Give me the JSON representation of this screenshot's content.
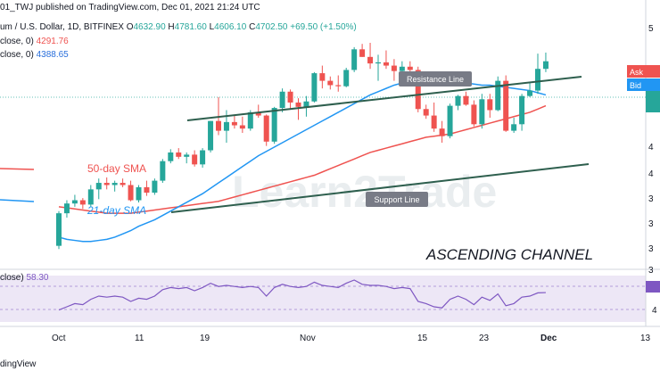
{
  "header": {
    "published": "01_TWJ published on TradingView.com, Dec 01, 2021 21:24 UTC",
    "symbol": "um / U.S. Dollar, 1D, BITFINEX",
    "open_label": "O",
    "open": "4632.90",
    "high_label": "H",
    "high": "4781.60",
    "low_label": "L",
    "low": "4606.10",
    "close_label": "C",
    "close": "4702.50",
    "change": "+69.50 (+1.50%)",
    "sma50_label": "close, 0)",
    "sma50_value": "4291.76",
    "sma21_label": "close, 0)",
    "sma21_value": "4388.65"
  },
  "annotations": {
    "resistance": "Resistance Line",
    "support": "Support Line",
    "sma50": "50-day SMA",
    "sma21": "21-day SMA",
    "pattern": "ASCENDING CHANNEL",
    "watermark": "Learn2Trade"
  },
  "price_panel": {
    "ask_label": "Ask",
    "bid_label": "Bid",
    "axis_labels": [
      "5",
      "4",
      "4",
      "4",
      "3",
      "3",
      "3",
      "3"
    ]
  },
  "rsi": {
    "label": "close)",
    "value": "58.30",
    "axis_labels": [
      "6",
      "4"
    ]
  },
  "x_axis": {
    "labels": [
      "Oct",
      "11",
      "19",
      "Nov",
      "15",
      "23",
      "Dec",
      "13"
    ]
  },
  "footer": "dingView",
  "colors": {
    "up": "#26a69a",
    "down": "#ef5350",
    "sma50": "#ef5350",
    "sma21": "#2196f3",
    "channel": "#2e5f4e",
    "rsi": "#7e57c2",
    "rsi_band": "#ede7f6"
  },
  "chart_data": {
    "type": "candlestick",
    "x": [
      "2021-10-01",
      "2021-10-02",
      "2021-10-03",
      "2021-10-04",
      "2021-10-05",
      "2021-10-06",
      "2021-10-07",
      "2021-10-08",
      "2021-10-09",
      "2021-10-10",
      "2021-10-11",
      "2021-10-12",
      "2021-10-13",
      "2021-10-14",
      "2021-10-15",
      "2021-10-16",
      "2021-10-17",
      "2021-10-18",
      "2021-10-19",
      "2021-10-20",
      "2021-10-21",
      "2021-10-22",
      "2021-10-23",
      "2021-10-24",
      "2021-10-25",
      "2021-10-26",
      "2021-10-27",
      "2021-10-28",
      "2021-10-29",
      "2021-10-30",
      "2021-10-31",
      "2021-11-01",
      "2021-11-02",
      "2021-11-03",
      "2021-11-04",
      "2021-11-05",
      "2021-11-06",
      "2021-11-07",
      "2021-11-08",
      "2021-11-09",
      "2021-11-10",
      "2021-11-11",
      "2021-11-12",
      "2021-11-13",
      "2021-11-14",
      "2021-11-15",
      "2021-11-16",
      "2021-11-17",
      "2021-11-18",
      "2021-11-19",
      "2021-11-20",
      "2021-11-21",
      "2021-11-22",
      "2021-11-23",
      "2021-11-24",
      "2021-11-25",
      "2021-11-26",
      "2021-11-27",
      "2021-11-28",
      "2021-11-29",
      "2021-11-30",
      "2021-12-01"
    ],
    "candles": [
      [
        3000,
        3320,
        2970,
        3300
      ],
      [
        3300,
        3420,
        3260,
        3390
      ],
      [
        3390,
        3470,
        3360,
        3420
      ],
      [
        3420,
        3440,
        3340,
        3380
      ],
      [
        3380,
        3560,
        3360,
        3520
      ],
      [
        3520,
        3620,
        3430,
        3580
      ],
      [
        3580,
        3630,
        3520,
        3560
      ],
      [
        3560,
        3600,
        3500,
        3580
      ],
      [
        3580,
        3620,
        3540,
        3560
      ],
      [
        3560,
        3600,
        3410,
        3420
      ],
      [
        3420,
        3560,
        3400,
        3540
      ],
      [
        3540,
        3600,
        3460,
        3490
      ],
      [
        3490,
        3620,
        3470,
        3600
      ],
      [
        3600,
        3800,
        3580,
        3780
      ],
      [
        3780,
        3890,
        3760,
        3860
      ],
      [
        3860,
        3900,
        3800,
        3820
      ],
      [
        3820,
        3860,
        3760,
        3840
      ],
      [
        3840,
        3880,
        3730,
        3750
      ],
      [
        3750,
        3900,
        3720,
        3880
      ],
      [
        3880,
        4150,
        3860,
        4150
      ],
      [
        4150,
        4370,
        4020,
        4060
      ],
      [
        4060,
        4250,
        3950,
        4140
      ],
      [
        4140,
        4200,
        4080,
        4110
      ],
      [
        4110,
        4190,
        4040,
        4080
      ],
      [
        4080,
        4250,
        4060,
        4230
      ],
      [
        4230,
        4300,
        4180,
        4200
      ],
      [
        4200,
        4210,
        3920,
        3960
      ],
      [
        3960,
        4280,
        3940,
        4270
      ],
      [
        4270,
        4450,
        4230,
        4420
      ],
      [
        4420,
        4440,
        4260,
        4320
      ],
      [
        4320,
        4360,
        4160,
        4280
      ],
      [
        4280,
        4380,
        4190,
        4330
      ],
      [
        4330,
        4600,
        4320,
        4590
      ],
      [
        4590,
        4660,
        4450,
        4520
      ],
      [
        4520,
        4560,
        4440,
        4480
      ],
      [
        4480,
        4570,
        4420,
        4470
      ],
      [
        4470,
        4640,
        4460,
        4620
      ],
      [
        4620,
        4830,
        4600,
        4810
      ],
      [
        4810,
        4860,
        4740,
        4740
      ],
      [
        4740,
        4870,
        4630,
        4680
      ],
      [
        4680,
        4760,
        4520,
        4690
      ],
      [
        4690,
        4800,
        4630,
        4660
      ],
      [
        4660,
        4720,
        4520,
        4610
      ],
      [
        4610,
        4700,
        4540,
        4650
      ],
      [
        4650,
        4700,
        4570,
        4620
      ],
      [
        4620,
        4650,
        4230,
        4260
      ],
      [
        4260,
        4300,
        4170,
        4200
      ],
      [
        4200,
        4320,
        4050,
        4080
      ],
      [
        4080,
        4150,
        3950,
        4010
      ],
      [
        4010,
        4310,
        3990,
        4290
      ],
      [
        4290,
        4390,
        4250,
        4380
      ],
      [
        4380,
        4420,
        4290,
        4300
      ],
      [
        4300,
        4340,
        4100,
        4120
      ],
      [
        4120,
        4400,
        4080,
        4350
      ],
      [
        4350,
        4400,
        4180,
        4250
      ],
      [
        4250,
        4560,
        4240,
        4520
      ],
      [
        4520,
        4570,
        4050,
        4060
      ],
      [
        4060,
        4180,
        4040,
        4120
      ],
      [
        4120,
        4400,
        4060,
        4380
      ],
      [
        4380,
        4500,
        4370,
        4430
      ],
      [
        4430,
        4770,
        4400,
        4630
      ],
      [
        4630,
        4780,
        4600,
        4700
      ]
    ],
    "sma21": [
      3080,
      3060,
      3050,
      3040,
      3040,
      3050,
      3060,
      3080,
      3110,
      3140,
      3180,
      3210,
      3240,
      3280,
      3320,
      3360,
      3400,
      3440,
      3480,
      3530,
      3580,
      3630,
      3680,
      3730,
      3780,
      3830,
      3870,
      3910,
      3950,
      3990,
      4030,
      4070,
      4110,
      4150,
      4190,
      4230,
      4270,
      4310,
      4350,
      4390,
      4420,
      4450,
      4480,
      4500,
      4520,
      4530,
      4520,
      4510,
      4500,
      4500,
      4500,
      4500,
      4490,
      4480,
      4480,
      4470,
      4460,
      4450,
      4440,
      4430,
      4410,
      4390
    ],
    "sma50": [
      3360,
      3350,
      3340,
      3330,
      3320,
      3310,
      3300,
      3300,
      3300,
      3300,
      3310,
      3320,
      3330,
      3340,
      3350,
      3360,
      3370,
      3380,
      3390,
      3400,
      3410,
      3430,
      3450,
      3470,
      3490,
      3510,
      3530,
      3550,
      3570,
      3590,
      3610,
      3630,
      3650,
      3680,
      3710,
      3740,
      3770,
      3800,
      3830,
      3860,
      3880,
      3900,
      3920,
      3940,
      3960,
      3980,
      4000,
      4010,
      4020,
      4030,
      4050,
      4070,
      4090,
      4110,
      4130,
      4150,
      4170,
      4190,
      4210,
      4230,
      4260,
      4290
    ],
    "rsi": [
      42,
      45,
      48,
      47,
      52,
      55,
      54,
      55,
      54,
      50,
      53,
      52,
      55,
      61,
      63,
      62,
      63,
      60,
      63,
      67,
      64,
      65,
      64,
      63,
      64,
      63,
      55,
      63,
      66,
      64,
      63,
      64,
      68,
      65,
      64,
      63,
      67,
      70,
      66,
      65,
      65,
      64,
      62,
      63,
      62,
      50,
      48,
      45,
      44,
      52,
      55,
      52,
      47,
      54,
      51,
      57,
      46,
      48,
      54,
      55,
      58,
      58.3
    ],
    "ylim": [
      2800,
      5100
    ],
    "rsi_ylim": [
      30,
      75
    ]
  }
}
